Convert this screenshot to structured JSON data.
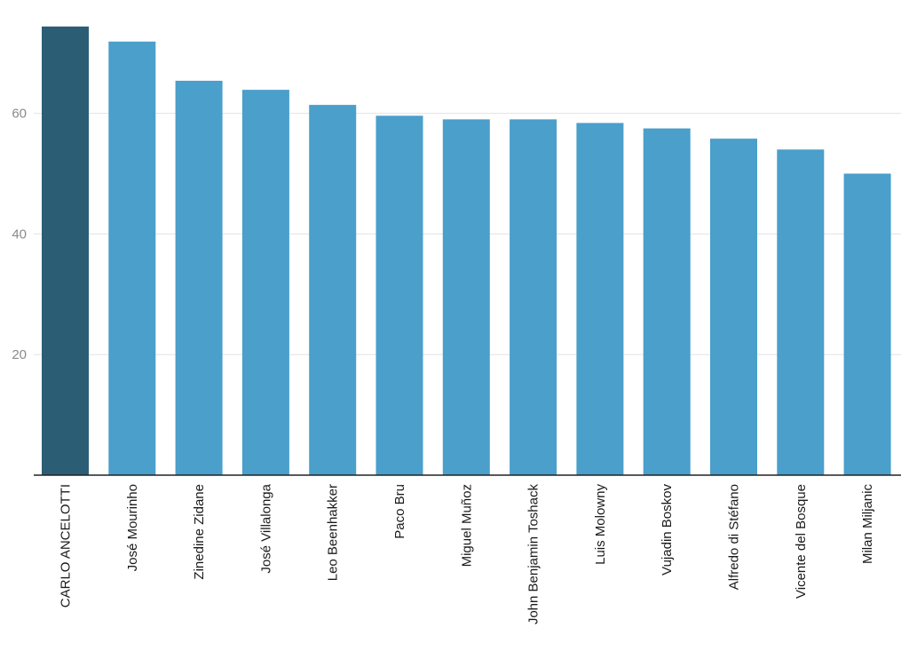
{
  "chart_data": {
    "type": "bar",
    "title": "",
    "xlabel": "",
    "ylabel": "",
    "categories": [
      "CARLO ANCELOTTI",
      "José Mourinho",
      "Zinedine Zidane",
      "José Villalonga",
      "Leo Beenhakker",
      "Paco Bru",
      "Miguel Muñoz",
      "John Benjamin Toshack",
      "Luis Molowny",
      "Vujadin Boskov",
      "Alfredo di Stéfano",
      "Vicente del Bosque",
      "Milan Miljanic"
    ],
    "values": [
      74.4,
      71.9,
      65.4,
      63.9,
      61.4,
      59.6,
      59.0,
      59.0,
      58.4,
      57.5,
      55.8,
      54.0,
      50.0
    ],
    "highlight_index": 0,
    "ylim": [
      0,
      75
    ],
    "yticks": [
      20,
      40,
      60
    ],
    "grid": true,
    "legend": "none",
    "colors": {
      "bar": "#4a9fcb",
      "highlight": "#2b5e74",
      "grid": "#e3e3e3",
      "axis": "#222222",
      "tick_label": "#8a8a8a",
      "category_label": "#1a1a1a"
    }
  }
}
